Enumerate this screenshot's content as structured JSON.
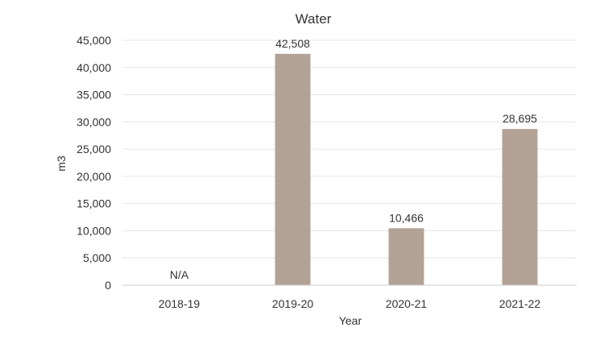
{
  "chart_data": {
    "type": "bar",
    "title": "Water",
    "xlabel": "Year",
    "ylabel": "m3",
    "categories": [
      "2018-19",
      "2019-20",
      "2020-21",
      "2021-22"
    ],
    "values": [
      null,
      42508,
      10466,
      28695
    ],
    "data_labels": [
      "N/A",
      "42,508",
      "10,466",
      "28,695"
    ],
    "ylim": [
      0,
      45000
    ],
    "yticks": [
      0,
      5000,
      10000,
      15000,
      20000,
      25000,
      30000,
      35000,
      40000,
      45000
    ],
    "ytick_labels": [
      "0",
      "5,000",
      "10,000",
      "15,000",
      "20,000",
      "25,000",
      "30,000",
      "35,000",
      "40,000",
      "45,000"
    ],
    "grid": true,
    "legend": "none",
    "colors": {
      "bar": "#b3a397",
      "grid": "#e6e6e6",
      "axis": "#cfcfcf",
      "text": "#333333"
    }
  }
}
